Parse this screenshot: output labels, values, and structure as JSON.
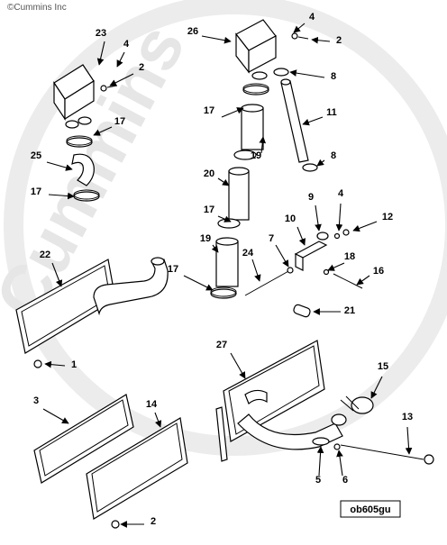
{
  "copyright": "©Cummins Inc",
  "watermark": "Cummins",
  "figure_code": "ob605gu",
  "callouts": [
    "23",
    "4",
    "2",
    "17",
    "25",
    "17",
    "26",
    "4",
    "2",
    "8",
    "17",
    "11",
    "19",
    "8",
    "20",
    "17",
    "19",
    "17",
    "9",
    "4",
    "10",
    "12",
    "24",
    "7",
    "18",
    "16",
    "21",
    "22",
    "1",
    "27",
    "15",
    "3",
    "14",
    "13",
    "5",
    "6",
    "2"
  ]
}
